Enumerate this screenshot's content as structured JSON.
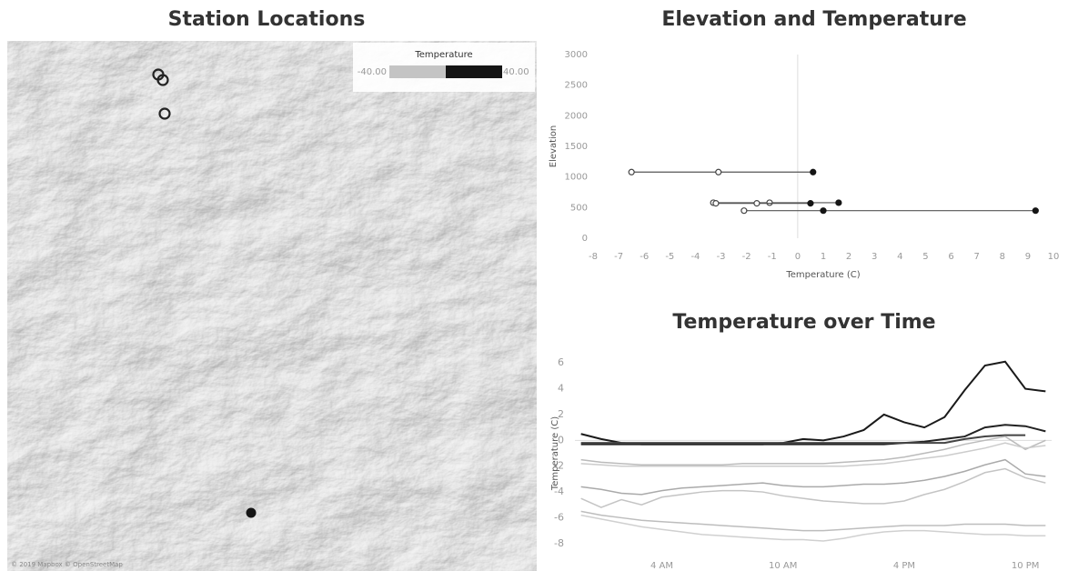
{
  "map": {
    "title": "Station Locations",
    "legend": {
      "title": "Temperature",
      "min": {
        "value": -40,
        "label": "-40.00"
      },
      "max": {
        "value": 40,
        "label": "40.00"
      },
      "colors": [
        "#c4c4c4",
        "#151515"
      ]
    },
    "attribution": "© 2019 Mapbox © OpenStreetMap",
    "station_temperatures": [
      -1.1,
      -1.6,
      -3.1,
      1.0
    ]
  },
  "chart_data": [
    {
      "type": "dumbbell",
      "title": "Elevation and Temperature",
      "x_label": "Temperature (C)",
      "y_label": "Elevation",
      "elevation": [
        1080,
        580,
        570,
        450
      ],
      "min": [
        -6.5,
        -3.3,
        -3.2,
        -2.1
      ],
      "avg": [
        -3.1,
        -1.1,
        -1.6,
        1.0
      ],
      "max": [
        0.6,
        1.6,
        0.5,
        9.3
      ],
      "xlim": [
        -8,
        10
      ],
      "ylim": [
        0,
        3000
      ],
      "xticks": [
        -8,
        -7,
        -6,
        -5,
        -4,
        -3,
        -2,
        -1,
        0,
        1,
        2,
        3,
        4,
        5,
        6,
        7,
        8,
        9,
        10
      ],
      "yticks": [
        0,
        500,
        1000,
        1500,
        2000,
        2500,
        3000
      ]
    },
    {
      "type": "line",
      "title": "Temperature over Time",
      "y_label": "Temperature (C)",
      "x": [
        0,
        1,
        2,
        3,
        4,
        5,
        6,
        7,
        8,
        9,
        10,
        11,
        12,
        13,
        14,
        15,
        16,
        17,
        18,
        19,
        20,
        21,
        22,
        23
      ],
      "xlim": [
        -0.3,
        23.3
      ],
      "xticks": [
        {
          "value": 4,
          "label": "4 AM"
        },
        {
          "value": 10,
          "label": "10 AM"
        },
        {
          "value": 16,
          "label": "4 PM"
        },
        {
          "value": 22,
          "label": "10 PM"
        }
      ],
      "ylim": [
        -9,
        7
      ],
      "yticks": [
        -8,
        -6,
        -4,
        -2,
        0,
        2,
        4,
        6
      ],
      "series": [
        {
          "color": "#1a1a1a",
          "values": [
            0.5,
            0.1,
            -0.2,
            -0.3,
            -0.3,
            -0.3,
            -0.3,
            -0.3,
            -0.3,
            -0.3,
            -0.2,
            0.1,
            0,
            0.3,
            0.8,
            2,
            1.4,
            1,
            1.8,
            3.9,
            5.8,
            6.1,
            4,
            3.8
          ]
        },
        {
          "color": "#222222",
          "values": [
            -0.3,
            -0.3,
            -0.3,
            -0.3,
            -0.3,
            -0.3,
            -0.3,
            -0.3,
            -0.3,
            -0.3,
            -0.3,
            -0.3,
            -0.3,
            -0.3,
            -0.3,
            -0.3,
            -0.2,
            -0.1,
            0.1,
            0.3,
            1,
            1.2,
            1.1,
            0.7
          ]
        },
        {
          "color": "#444444",
          "values": [
            -0.2,
            -0.2,
            -0.2,
            -0.2,
            -0.2,
            -0.2,
            -0.2,
            -0.2,
            -0.2,
            -0.2,
            -0.2,
            -0.2,
            -0.2,
            -0.2,
            -0.2,
            -0.2,
            -0.2,
            -0.2,
            -0.2,
            0.1,
            0.3,
            0.4,
            0.4,
            null
          ]
        },
        {
          "color": "#bbbbbb",
          "values": [
            -1.5,
            -1.7,
            -1.8,
            -1.9,
            -1.9,
            -1.9,
            -1.9,
            -1.9,
            -1.8,
            -1.8,
            -1.8,
            -1.8,
            -1.8,
            -1.7,
            -1.6,
            -1.5,
            -1.3,
            -1,
            -0.7,
            -0.3,
            0,
            0.3,
            -0.7,
            0
          ]
        },
        {
          "color": "#cccccc",
          "values": [
            -1.8,
            -1.9,
            -2,
            -2,
            -2,
            -2,
            -2,
            -2,
            -2,
            -2,
            -2,
            -2,
            -2,
            -2,
            -1.9,
            -1.8,
            -1.6,
            -1.4,
            -1.2,
            -0.9,
            -0.6,
            -0.2,
            -0.6,
            -0.4
          ]
        },
        {
          "color": "#aaaaaa",
          "values": [
            -3.6,
            -3.8,
            -4.1,
            -4.2,
            -3.9,
            -3.7,
            -3.6,
            -3.5,
            -3.4,
            -3.3,
            -3.5,
            -3.6,
            -3.6,
            -3.5,
            -3.4,
            -3.4,
            -3.3,
            -3.1,
            -2.8,
            -2.4,
            -1.9,
            -1.5,
            -2.6,
            -2.8
          ]
        },
        {
          "color": "#c4c4c4",
          "values": [
            -4.5,
            -5.2,
            -4.6,
            -5,
            -4.4,
            -4.2,
            -4,
            -3.9,
            -3.9,
            -4,
            -4.3,
            -4.5,
            -4.7,
            -4.8,
            -4.9,
            -4.9,
            -4.7,
            -4.2,
            -3.8,
            -3.2,
            -2.5,
            -2.2,
            -2.9,
            -3.3
          ]
        },
        {
          "color": "#bdbdbd",
          "values": [
            -5.5,
            -5.8,
            -6,
            -6.2,
            -6.3,
            -6.4,
            -6.5,
            -6.6,
            -6.7,
            -6.8,
            -6.9,
            -7,
            -7,
            -6.9,
            -6.8,
            -6.7,
            -6.6,
            -6.6,
            -6.6,
            -6.5,
            -6.5,
            -6.5,
            -6.6,
            -6.6
          ]
        },
        {
          "color": "#d0d0d0",
          "values": [
            -5.8,
            -6.1,
            -6.4,
            -6.7,
            -6.9,
            -7.1,
            -7.3,
            -7.4,
            -7.5,
            -7.6,
            -7.7,
            -7.7,
            -7.8,
            -7.6,
            -7.3,
            -7.1,
            -7,
            -7,
            -7.1,
            -7.2,
            -7.3,
            -7.3,
            -7.4,
            -7.4
          ]
        }
      ]
    }
  ]
}
